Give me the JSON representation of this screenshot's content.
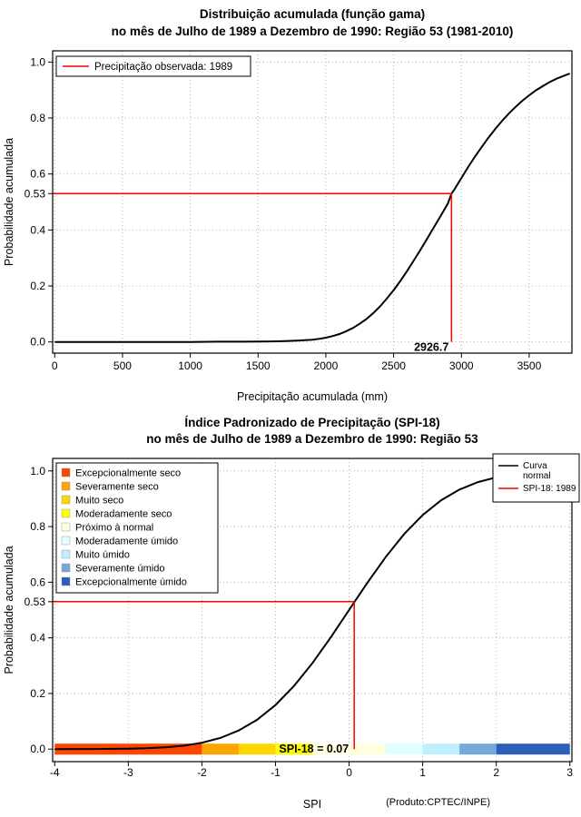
{
  "page": {
    "background": "#ffffff"
  },
  "chart_data": [
    {
      "type": "line",
      "title": "Distribuição acumulada (função gama)",
      "subtitle": "no mês de Julho de 1989 a Dezembro de 1990: Região 53 (1981-2010)",
      "xlabel": "Precipitação acumulada (mm)",
      "ylabel": "Probabilidade acumulada",
      "xlim": [
        0,
        3800
      ],
      "ylim": [
        0,
        1
      ],
      "xticks": [
        0,
        500,
        1000,
        1500,
        2000,
        2500,
        3000,
        3500
      ],
      "xtick_labels": [
        "0",
        "500",
        "1000",
        "1500",
        "2000",
        "2500",
        "3000",
        "3500"
      ],
      "yticks": [
        0,
        0.2,
        0.4,
        0.53,
        0.6,
        0.8,
        1
      ],
      "ytick_labels": [
        "0.0",
        "0.2",
        "0.4",
        "0.53",
        "0.6",
        "0.8",
        "1.0"
      ],
      "xgrid": [
        0,
        500,
        1000,
        1500,
        2000,
        2500,
        3000,
        3500
      ],
      "ygrid": [
        0,
        0.2,
        0.4,
        0.6,
        0.8,
        1
      ],
      "grid": true,
      "colors": {
        "curve": "#000000",
        "reference": "#ff0000",
        "grid": "#b0b0b0"
      },
      "legend": {
        "position": "top-left",
        "items": [
          {
            "type": "line",
            "color": "#ff0000",
            "label": "Precipitação observada: 1989"
          }
        ]
      },
      "series": [
        {
          "name": "curva-gama-cdf",
          "color": "#000000",
          "points": [
            [
              0,
              0
            ],
            [
              200,
              0
            ],
            [
              400,
              0
            ],
            [
              600,
              0
            ],
            [
              800,
              0
            ],
            [
              1000,
              0
            ],
            [
              1200,
              0.001
            ],
            [
              1400,
              0.001
            ],
            [
              1600,
              0.002
            ],
            [
              1700,
              0.003
            ],
            [
              1800,
              0.005
            ],
            [
              1900,
              0.008
            ],
            [
              1950,
              0.011
            ],
            [
              2000,
              0.015
            ],
            [
              2050,
              0.021
            ],
            [
              2100,
              0.028
            ],
            [
              2150,
              0.038
            ],
            [
              2200,
              0.05
            ],
            [
              2250,
              0.065
            ],
            [
              2300,
              0.082
            ],
            [
              2350,
              0.103
            ],
            [
              2400,
              0.127
            ],
            [
              2450,
              0.155
            ],
            [
              2500,
              0.185
            ],
            [
              2550,
              0.218
            ],
            [
              2600,
              0.254
            ],
            [
              2650,
              0.292
            ],
            [
              2700,
              0.331
            ],
            [
              2750,
              0.371
            ],
            [
              2800,
              0.412
            ],
            [
              2850,
              0.453
            ],
            [
              2900,
              0.494
            ],
            [
              2926.7,
              0.53
            ],
            [
              2950,
              0.546
            ],
            [
              3000,
              0.586
            ],
            [
              3050,
              0.625
            ],
            [
              3100,
              0.662
            ],
            [
              3150,
              0.697
            ],
            [
              3200,
              0.73
            ],
            [
              3250,
              0.761
            ],
            [
              3300,
              0.79
            ],
            [
              3350,
              0.816
            ],
            [
              3400,
              0.84
            ],
            [
              3450,
              0.862
            ],
            [
              3500,
              0.881
            ],
            [
              3550,
              0.899
            ],
            [
              3600,
              0.914
            ],
            [
              3650,
              0.928
            ],
            [
              3700,
              0.94
            ],
            [
              3750,
              0.95
            ],
            [
              3800,
              0.959
            ]
          ]
        }
      ],
      "reference": {
        "x": 2926.7,
        "y": 0.53,
        "color": "#ff0000",
        "x_label": "2926.7"
      }
    },
    {
      "type": "line",
      "title": "Índice Padronizado de Precipitação (SPI-18)",
      "subtitle": "no mês de Julho de 1989 a Dezembro de 1990: Região 53",
      "xlabel": "SPI",
      "ylabel": "Probabilidade acumulada",
      "footnote": "(Produto:CPTEC/INPE)",
      "xlim": [
        -4,
        3
      ],
      "ylim": [
        0,
        1
      ],
      "xticks": [
        -4,
        -3,
        -2,
        -1,
        0,
        1,
        2,
        3
      ],
      "xtick_labels": [
        "-4",
        "-3",
        "-2",
        "-1",
        "0",
        "1",
        "2",
        "3"
      ],
      "yticks": [
        0,
        0.2,
        0.4,
        0.53,
        0.6,
        0.8,
        1
      ],
      "ytick_labels": [
        "0.0",
        "0.2",
        "0.4",
        "0.53",
        "0.6",
        "0.8",
        "1.0"
      ],
      "xgrid": [
        -4,
        -3,
        -2,
        -1,
        0,
        1,
        2,
        3
      ],
      "ygrid": [
        0,
        0.2,
        0.4,
        0.6,
        0.8,
        1
      ],
      "grid": true,
      "colors": {
        "curve": "#000000",
        "reference": "#ff0000",
        "grid": "#b0b0b0"
      },
      "series": [
        {
          "name": "curva-normal-cdf",
          "color": "#000000",
          "points": [
            [
              -4,
              0.0
            ],
            [
              -3.5,
              0.0002
            ],
            [
              -3,
              0.0013
            ],
            [
              -2.75,
              0.003
            ],
            [
              -2.5,
              0.0062
            ],
            [
              -2.25,
              0.0122
            ],
            [
              -2,
              0.0228
            ],
            [
              -1.75,
              0.0401
            ],
            [
              -1.5,
              0.0668
            ],
            [
              -1.25,
              0.1056
            ],
            [
              -1,
              0.1587
            ],
            [
              -0.75,
              0.2266
            ],
            [
              -0.5,
              0.3085
            ],
            [
              -0.25,
              0.4013
            ],
            [
              0,
              0.5
            ],
            [
              0.07,
              0.528
            ],
            [
              0.25,
              0.5987
            ],
            [
              0.5,
              0.6915
            ],
            [
              0.75,
              0.7734
            ],
            [
              1,
              0.8413
            ],
            [
              1.25,
              0.8944
            ],
            [
              1.5,
              0.9332
            ],
            [
              1.75,
              0.9599
            ],
            [
              2,
              0.9772
            ],
            [
              2.25,
              0.9878
            ],
            [
              2.5,
              0.9938
            ],
            [
              2.75,
              0.997
            ],
            [
              3,
              0.9987
            ]
          ]
        }
      ],
      "reference": {
        "x": 0.07,
        "y": 0.53,
        "color": "#ff0000"
      },
      "annotation": {
        "text": "SPI-18 = 0.07",
        "x": 0.07,
        "y": 0
      },
      "category_bar": {
        "segments": [
          {
            "from": -4,
            "to": -2,
            "color": "#ff4500",
            "label": "Excepcionalmente seco"
          },
          {
            "from": -2,
            "to": -1.5,
            "color": "#ffa500",
            "label": "Severamente seco"
          },
          {
            "from": -1.5,
            "to": -1,
            "color": "#ffd700",
            "label": "Muito seco"
          },
          {
            "from": -1,
            "to": -0.5,
            "color": "#ffff00",
            "label": "Moderadamente seco"
          },
          {
            "from": -0.5,
            "to": 0.5,
            "color": "#ffffe0",
            "label": "Próximo à normal"
          },
          {
            "from": 0.5,
            "to": 1,
            "color": "#e0ffff",
            "label": "Moderadamente úmido"
          },
          {
            "from": 1,
            "to": 1.5,
            "color": "#bfefff",
            "label": "Muito úmido"
          },
          {
            "from": 1.5,
            "to": 2,
            "color": "#74a9d8",
            "label": "Severamente úmido"
          },
          {
            "from": 2,
            "to": 3,
            "color": "#2b5fba",
            "label": "Excepcionalmente úmido"
          }
        ]
      },
      "legend_categories": {
        "position": "top-left",
        "items": [
          {
            "color": "#ff4500",
            "label": "Excepcionalmente seco"
          },
          {
            "color": "#ffa500",
            "label": "Severamente seco"
          },
          {
            "color": "#ffd700",
            "label": "Muito seco"
          },
          {
            "color": "#ffff00",
            "label": "Moderadamente seco"
          },
          {
            "color": "#ffffe0",
            "label": "Próximo à normal"
          },
          {
            "color": "#e0ffff",
            "label": "Moderadamente úmido"
          },
          {
            "color": "#bfefff",
            "label": "Muito úmido"
          },
          {
            "color": "#74a9d8",
            "label": "Severamente úmido"
          },
          {
            "color": "#2b5fba",
            "label": "Excepcionalmente úmido"
          }
        ]
      },
      "legend_lines": {
        "position": "top-right",
        "items": [
          {
            "color": "#000000",
            "label": "Curva normal",
            "label_lines": [
              "Curva",
              "normal"
            ]
          },
          {
            "color": "#ff0000",
            "label": "SPI-18: 1989",
            "label_lines": [
              "SPI-18: 1989"
            ]
          }
        ]
      }
    }
  ]
}
